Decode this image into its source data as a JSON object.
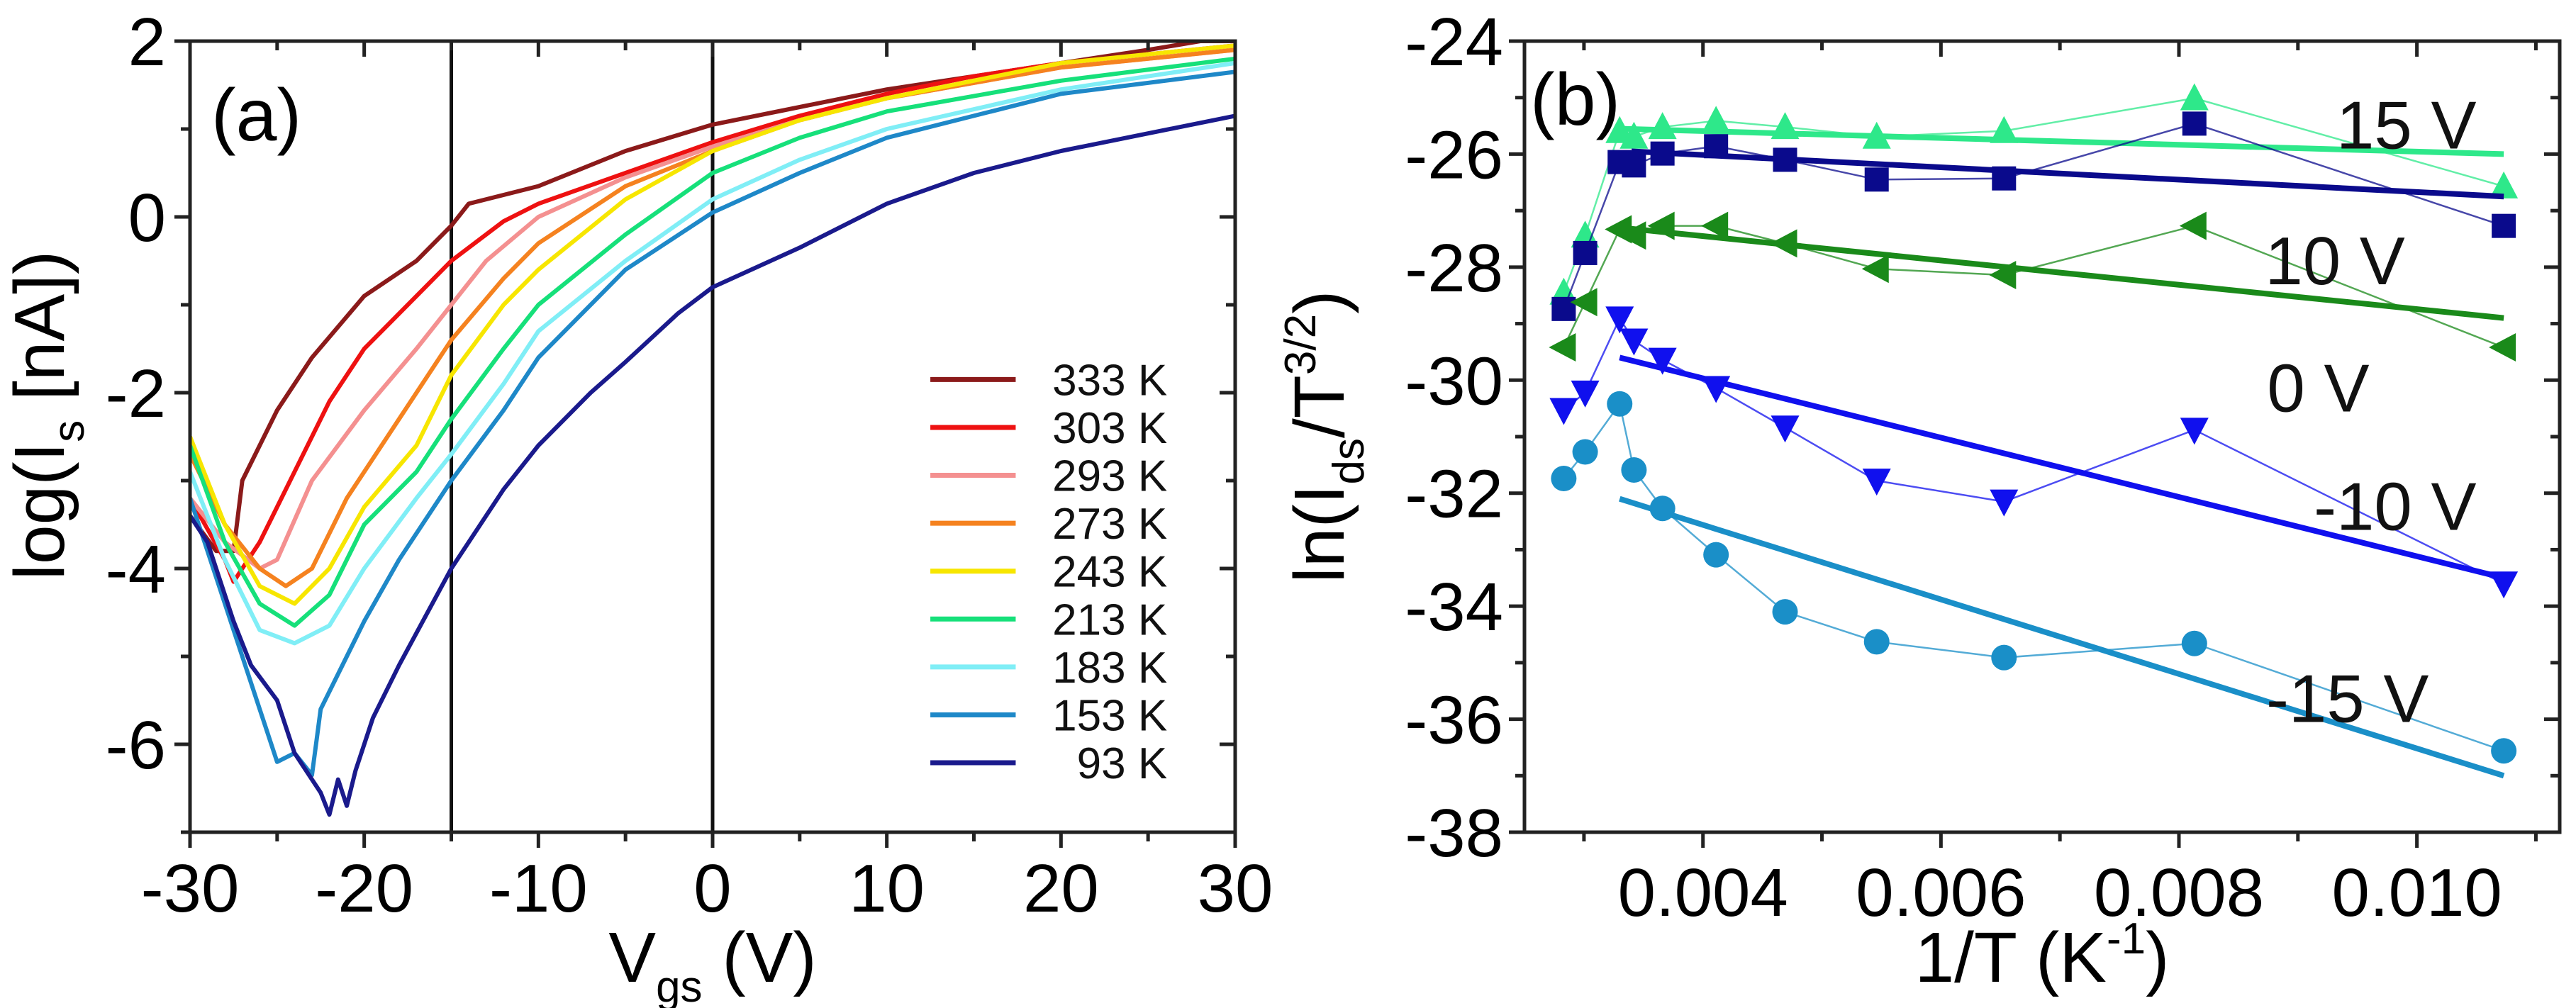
{
  "chart_data": [
    {
      "type": "line",
      "panel_label": "(a)",
      "xlabel": {
        "main": "V",
        "sub": "gs",
        "rest": " (V)"
      },
      "ylabel": {
        "main": "log(I",
        "sub": "s",
        "rest": " [nA])"
      },
      "xlim": [
        -30,
        30
      ],
      "ylim": [
        -7,
        2
      ],
      "xticks": [
        -30,
        -20,
        -10,
        0,
        10,
        20,
        30
      ],
      "yticks": [
        2,
        0,
        -2,
        -4,
        -6
      ],
      "reference_lines_x": [
        -15,
        0
      ],
      "legend_position": "center-right",
      "series": [
        {
          "name": "333 K",
          "color": "#8b1a1a",
          "points": [
            [
              -30,
              -3.4
            ],
            [
              -28.5,
              -3.8
            ],
            [
              -27.5,
              -3.8
            ],
            [
              -27,
              -3.0
            ],
            [
              -25,
              -2.2
            ],
            [
              -23,
              -1.6
            ],
            [
              -20,
              -0.9
            ],
            [
              -17,
              -0.5
            ],
            [
              -15,
              -0.1
            ],
            [
              -14,
              0.15
            ],
            [
              -10,
              0.35
            ],
            [
              -5,
              0.75
            ],
            [
              0,
              1.05
            ],
            [
              5,
              1.25
            ],
            [
              10,
              1.45
            ],
            [
              15,
              1.6
            ],
            [
              20,
              1.75
            ],
            [
              25,
              1.9
            ],
            [
              28,
              2.0
            ],
            [
              30,
              2.0
            ]
          ]
        },
        {
          "name": "303 K",
          "color": "#ee1111",
          "points": [
            [
              -30,
              -3.2
            ],
            [
              -28,
              -3.9
            ],
            [
              -27.5,
              -4.15
            ],
            [
              -26,
              -3.7
            ],
            [
              -24,
              -2.9
            ],
            [
              -22,
              -2.1
            ],
            [
              -20,
              -1.5
            ],
            [
              -17,
              -0.9
            ],
            [
              -15,
              -0.5
            ],
            [
              -12,
              -0.05
            ],
            [
              -10,
              0.15
            ],
            [
              -5,
              0.5
            ],
            [
              0,
              0.85
            ],
            [
              5,
              1.15
            ],
            [
              10,
              1.4
            ],
            [
              15,
              1.6
            ],
            [
              20,
              1.75
            ],
            [
              25,
              1.85
            ],
            [
              30,
              1.95
            ]
          ]
        },
        {
          "name": "293 K",
          "color": "#f49090",
          "points": [
            [
              -30,
              -3.2
            ],
            [
              -28,
              -3.7
            ],
            [
              -26,
              -4.0
            ],
            [
              -25,
              -3.9
            ],
            [
              -23,
              -3.0
            ],
            [
              -20,
              -2.2
            ],
            [
              -17,
              -1.5
            ],
            [
              -15,
              -1.0
            ],
            [
              -13,
              -0.5
            ],
            [
              -10,
              0.0
            ],
            [
              -5,
              0.45
            ],
            [
              0,
              0.8
            ],
            [
              5,
              1.1
            ],
            [
              10,
              1.35
            ],
            [
              20,
              1.7
            ],
            [
              30,
              1.9
            ]
          ]
        },
        {
          "name": "273 K",
          "color": "#f5821f",
          "points": [
            [
              -30,
              -2.7
            ],
            [
              -28,
              -3.5
            ],
            [
              -26,
              -4.0
            ],
            [
              -24.5,
              -4.2
            ],
            [
              -23,
              -4.0
            ],
            [
              -21,
              -3.2
            ],
            [
              -18,
              -2.3
            ],
            [
              -15,
              -1.4
            ],
            [
              -12,
              -0.7
            ],
            [
              -10,
              -0.3
            ],
            [
              -5,
              0.35
            ],
            [
              0,
              0.75
            ],
            [
              5,
              1.1
            ],
            [
              10,
              1.35
            ],
            [
              20,
              1.7
            ],
            [
              30,
              1.9
            ]
          ]
        },
        {
          "name": "243 K",
          "color": "#f7e600",
          "points": [
            [
              -30,
              -2.5
            ],
            [
              -28,
              -3.5
            ],
            [
              -26,
              -4.2
            ],
            [
              -24,
              -4.4
            ],
            [
              -22,
              -4.0
            ],
            [
              -20,
              -3.3
            ],
            [
              -17,
              -2.6
            ],
            [
              -15,
              -1.8
            ],
            [
              -12,
              -1.0
            ],
            [
              -10,
              -0.6
            ],
            [
              -5,
              0.2
            ],
            [
              0,
              0.75
            ],
            [
              5,
              1.1
            ],
            [
              10,
              1.35
            ],
            [
              20,
              1.75
            ],
            [
              30,
              1.95
            ]
          ]
        },
        {
          "name": "213 K",
          "color": "#16e07a",
          "points": [
            [
              -30,
              -2.6
            ],
            [
              -28,
              -3.7
            ],
            [
              -26,
              -4.4
            ],
            [
              -24,
              -4.65
            ],
            [
              -22,
              -4.3
            ],
            [
              -20,
              -3.5
            ],
            [
              -17,
              -2.9
            ],
            [
              -15,
              -2.3
            ],
            [
              -12,
              -1.5
            ],
            [
              -10,
              -1.0
            ],
            [
              -5,
              -0.2
            ],
            [
              0,
              0.5
            ],
            [
              5,
              0.9
            ],
            [
              10,
              1.2
            ],
            [
              20,
              1.55
            ],
            [
              30,
              1.8
            ]
          ]
        },
        {
          "name": "183 K",
          "color": "#80eef6",
          "points": [
            [
              -30,
              -2.9
            ],
            [
              -28,
              -3.9
            ],
            [
              -26,
              -4.7
            ],
            [
              -24,
              -4.85
            ],
            [
              -22,
              -4.65
            ],
            [
              -20,
              -4.0
            ],
            [
              -17,
              -3.2
            ],
            [
              -15,
              -2.7
            ],
            [
              -12,
              -1.9
            ],
            [
              -10,
              -1.3
            ],
            [
              -5,
              -0.5
            ],
            [
              0,
              0.2
            ],
            [
              5,
              0.65
            ],
            [
              10,
              1.0
            ],
            [
              20,
              1.45
            ],
            [
              30,
              1.75
            ]
          ]
        },
        {
          "name": "153 K",
          "color": "#1e88c8",
          "points": [
            [
              -30,
              -3.2
            ],
            [
              -28,
              -4.4
            ],
            [
              -26,
              -5.6
            ],
            [
              -25,
              -6.2
            ],
            [
              -24,
              -6.1
            ],
            [
              -23,
              -6.35
            ],
            [
              -22.5,
              -5.6
            ],
            [
              -21,
              -5.0
            ],
            [
              -20,
              -4.6
            ],
            [
              -18,
              -3.9
            ],
            [
              -15,
              -3.0
            ],
            [
              -12,
              -2.2
            ],
            [
              -10,
              -1.6
            ],
            [
              -5,
              -0.6
            ],
            [
              0,
              0.05
            ],
            [
              5,
              0.5
            ],
            [
              10,
              0.9
            ],
            [
              20,
              1.4
            ],
            [
              30,
              1.65
            ]
          ]
        },
        {
          "name": "93 K",
          "color": "#1a1a8c",
          "points": [
            [
              -30,
              -3.4
            ],
            [
              -29,
              -3.7
            ],
            [
              -27.5,
              -4.6
            ],
            [
              -26.5,
              -5.1
            ],
            [
              -25,
              -5.5
            ],
            [
              -24,
              -6.1
            ],
            [
              -23,
              -6.4
            ],
            [
              -22.5,
              -6.55
            ],
            [
              -22,
              -6.8
            ],
            [
              -21.5,
              -6.4
            ],
            [
              -21,
              -6.7
            ],
            [
              -20.5,
              -6.3
            ],
            [
              -19.5,
              -5.7
            ],
            [
              -18,
              -5.1
            ],
            [
              -15,
              -4.0
            ],
            [
              -12,
              -3.1
            ],
            [
              -10,
              -2.6
            ],
            [
              -7,
              -2.0
            ],
            [
              -5,
              -1.65
            ],
            [
              -2,
              -1.1
            ],
            [
              0,
              -0.8
            ],
            [
              5,
              -0.35
            ],
            [
              10,
              0.15
            ],
            [
              15,
              0.5
            ],
            [
              20,
              0.75
            ],
            [
              25,
              0.95
            ],
            [
              30,
              1.15
            ]
          ]
        }
      ]
    },
    {
      "type": "scatter",
      "panel_label": "(b)",
      "xlabel": {
        "main": "1/T (K",
        "sup": "-1",
        "rest": ")"
      },
      "ylabel": {
        "main": "ln(I",
        "sub": "ds",
        "mid": "/T",
        "sup": "3/2",
        "rest": ")"
      },
      "xlim": [
        0.0025,
        0.0112
      ],
      "ylim": [
        -38,
        -24
      ],
      "xticks": [
        "0.004",
        "0.006",
        "0.008",
        "0.010"
      ],
      "yticks": [
        -24,
        -26,
        -28,
        -30,
        -32,
        -34,
        -36,
        -38
      ],
      "x": [
        0.00283,
        0.00301,
        0.0033,
        0.00342,
        0.00366,
        0.00411,
        0.00469,
        0.00546,
        0.00653,
        0.00813,
        0.01073
      ],
      "series": [
        {
          "name": "15 V",
          "color": "#2ee88a",
          "marker": "triangle-up",
          "values": [
            -28.45,
            -27.44,
            -25.59,
            -25.69,
            -25.52,
            -25.41,
            -25.52,
            -25.69,
            -25.59,
            -25.01,
            -26.57
          ],
          "fit": [
            [
              0.0033,
              -25.55
            ],
            [
              0.01073,
              -26.0
            ]
          ]
        },
        {
          "name": "10 V",
          "color": "#0a0a8c",
          "marker": "square",
          "values": [
            -28.74,
            -27.75,
            -26.14,
            -26.2,
            -25.99,
            -25.86,
            -26.1,
            -26.45,
            -26.43,
            -25.46,
            -27.27
          ],
          "fit": [
            [
              0.0034,
              -25.95
            ],
            [
              0.01073,
              -26.75
            ]
          ]
        },
        {
          "name": "0 V",
          "color": "#1a8a1a",
          "marker": "triangle-left",
          "values": [
            -29.42,
            -28.62,
            -27.33,
            -27.44,
            -27.27,
            -27.27,
            -27.58,
            -28.03,
            -28.14,
            -27.27,
            -29.42
          ],
          "fit": [
            [
              0.0033,
              -27.3
            ],
            [
              0.01073,
              -28.9
            ]
          ]
        },
        {
          "name": "-10 V",
          "color": "#1010ee",
          "marker": "triangle-down",
          "values": [
            -30.53,
            -30.22,
            -28.91,
            -29.3,
            -29.64,
            -30.14,
            -30.84,
            -31.78,
            -32.15,
            -30.88,
            -33.6
          ],
          "fit": [
            [
              0.0033,
              -29.6
            ],
            [
              0.01073,
              -33.5
            ]
          ]
        },
        {
          "name": "-15 V",
          "color": "#1a8fc8",
          "marker": "circle",
          "values": [
            -31.74,
            -31.27,
            -30.42,
            -31.59,
            -32.27,
            -33.09,
            -34.1,
            -34.63,
            -34.91,
            -34.66,
            -36.56
          ],
          "fit": [
            [
              0.0033,
              -32.1
            ],
            [
              0.01073,
              -37.0
            ]
          ]
        }
      ]
    }
  ]
}
